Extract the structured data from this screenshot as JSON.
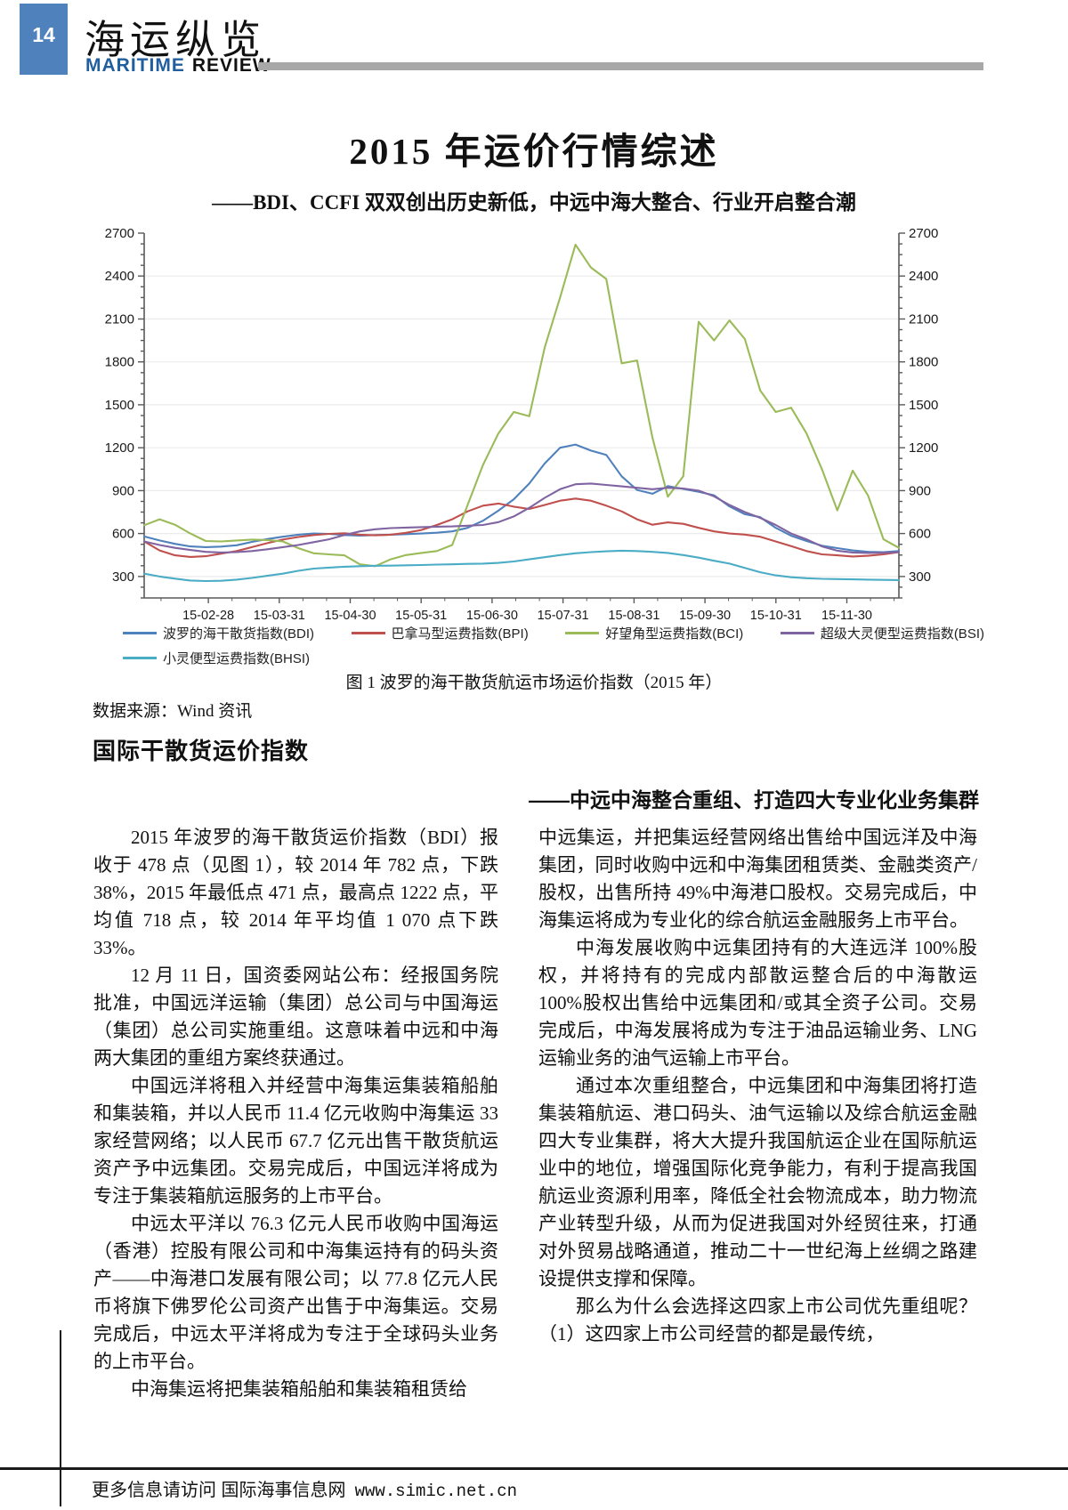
{
  "page": {
    "page_number": "14",
    "masthead_cn": "海运纵览",
    "masthead_en_blue": "MARITIME",
    "masthead_en_black": "REVIEW",
    "accent_blue": "#4f81bd",
    "masthead_blue": "#215e9e",
    "bar_gray": "#a8a8a8"
  },
  "article": {
    "title": "2015 年运价行情综述",
    "subtitle": "——BDI、CCFI 双双创出历史新低，中远中海大整合、行业开启整合潮",
    "figure_caption": "图 1 波罗的海干散货航运市场运价指数（2015 年）",
    "data_source": "数据来源：Wind 资讯",
    "section_heading": "国际干散货运价指数",
    "sub_heading": "——中远中海整合重组、打造四大专业化业务集群",
    "left_column": [
      "2015 年波罗的海干散货运价指数（BDI）报收于 478 点（见图 1），较 2014 年 782 点，下跌 38%，2015 年最低点 471 点，最高点 1222 点，平均值 718 点，较 2014 年平均值 1 070 点下跌 33%。",
      "12 月 11 日，国资委网站公布：经报国务院批准，中国远洋运输（集团）总公司与中国海运（集团）总公司实施重组。这意味着中远和中海两大集团的重组方案终获通过。",
      "中国远洋将租入并经营中海集运集装箱船舶和集装箱，并以人民币 11.4 亿元收购中海集运 33 家经营网络；以人民币 67.7 亿元出售干散货航运资产予中远集团。交易完成后，中国远洋将成为专注于集装箱航运服务的上市平台。",
      "中远太平洋以 76.3 亿元人民币收购中国海运（香港）控股有限公司和中海集运持有的码头资产——中海港口发展有限公司；以 77.8 亿元人民币将旗下佛罗伦公司资产出售于中海集运。交易完成后，中远太平洋将成为专注于全球码头业务的上市平台。",
      "中海集运将把集装箱船舶和集装箱租赁给"
    ],
    "right_column": [
      "中远集运，并把集运经营网络出售给中国远洋及中海集团，同时收购中远和中海集团租赁类、金融类资产/股权，出售所持 49%中海港口股权。交易完成后，中海集运将成为专业化的综合航运金融服务上市平台。",
      "中海发展收购中远集团持有的大连远洋 100%股权，并将持有的完成内部散运整合后的中海散运 100%股权出售给中远集团和/或其全资子公司。交易完成后，中海发展将成为专注于油品运输业务、LNG 运输业务的油气运输上市平台。",
      "通过本次重组整合，中远集团和中海集团将打造集装箱航运、港口码头、油气运输以及综合航运金融四大专业集群，将大大提升我国航运企业在国际航运业中的地位，增强国际化竞争能力，有利于提高我国航运业资源利用率，降低全社会物流成本，助力物流产业转型升级，从而为促进我国对外经贸往来，打通对外贸易战略通道，推动二十一世纪海上丝绸之路建设提供支撑和保障。",
      "那么为什么会选择这四家上市公司优先重组呢？（1）这四家上市公司经营的都是最传统，"
    ]
  },
  "footer": {
    "text_cn": "更多信息请访问  国际海事信息网",
    "url": "www.simic.net.cn"
  },
  "chart_data": {
    "type": "line",
    "title": "波罗的海干散货航运市场运价指数（2015 年）",
    "xlabel": "",
    "ylabel": "",
    "ylim": [
      150,
      2700
    ],
    "y_ticks": [
      300,
      600,
      900,
      1200,
      1500,
      1800,
      2100,
      2400,
      2700
    ],
    "grid": true,
    "legend_position": "bottom",
    "x_tick_labels": [
      "15-02-28",
      "15-03-31",
      "15-04-30",
      "15-05-31",
      "15-06-30",
      "15-07-31",
      "15-08-31",
      "15-09-30",
      "15-10-31",
      "15-11-30"
    ],
    "series": [
      {
        "name": "波罗的海干散货指数(BDI)",
        "color": "#4f81bd",
        "values": [
          580,
          552,
          528,
          510,
          505,
          509,
          518,
          542,
          562,
          578,
          592,
          600,
          598,
          590,
          586,
          590,
          592,
          596,
          600,
          606,
          615,
          640,
          690,
          760,
          840,
          950,
          1090,
          1200,
          1222,
          1180,
          1150,
          1000,
          905,
          878,
          932,
          912,
          892,
          868,
          790,
          735,
          715,
          640,
          585,
          548,
          515,
          498,
          482,
          472,
          470,
          478
        ]
      },
      {
        "name": "巴拿马型运费指数(BPI)",
        "color": "#c0504d",
        "values": [
          545,
          482,
          448,
          437,
          442,
          460,
          478,
          505,
          533,
          558,
          576,
          590,
          598,
          602,
          592,
          588,
          592,
          605,
          625,
          660,
          700,
          755,
          795,
          810,
          788,
          772,
          800,
          830,
          845,
          830,
          795,
          755,
          700,
          662,
          678,
          668,
          640,
          615,
          600,
          593,
          578,
          545,
          512,
          478,
          455,
          448,
          440,
          445,
          455,
          470
        ]
      },
      {
        "name": "好望角型运费指数(BCI)",
        "color": "#9bbb59",
        "values": [
          658,
          700,
          662,
          600,
          548,
          545,
          552,
          558,
          555,
          545,
          498,
          462,
          455,
          448,
          385,
          372,
          420,
          450,
          465,
          478,
          520,
          800,
          1080,
          1300,
          1450,
          1420,
          1900,
          2250,
          2620,
          2460,
          2380,
          1790,
          1810,
          1270,
          858,
          1000,
          2080,
          1950,
          2090,
          1960,
          1600,
          1450,
          1480,
          1300,
          1050,
          762,
          1040,
          865,
          560,
          500
        ]
      },
      {
        "name": "超级大灵便型运费指数(BSI)",
        "color": "#8064a2",
        "values": [
          545,
          520,
          500,
          485,
          472,
          468,
          470,
          478,
          490,
          505,
          520,
          540,
          560,
          590,
          615,
          630,
          638,
          642,
          645,
          648,
          650,
          655,
          660,
          680,
          720,
          780,
          850,
          910,
          945,
          950,
          940,
          930,
          920,
          910,
          920,
          915,
          900,
          860,
          800,
          750,
          710,
          660,
          600,
          560,
          510,
          480,
          468,
          465,
          466,
          470
        ]
      },
      {
        "name": "小灵便型运费指数(BHSI)",
        "color": "#4bacc6",
        "values": [
          320,
          300,
          285,
          272,
          268,
          270,
          278,
          290,
          305,
          320,
          340,
          355,
          362,
          368,
          372,
          375,
          376,
          378,
          380,
          383,
          385,
          388,
          390,
          395,
          405,
          420,
          435,
          450,
          462,
          470,
          476,
          480,
          478,
          472,
          465,
          450,
          432,
          410,
          390,
          360,
          330,
          308,
          295,
          288,
          284,
          282,
          280,
          278,
          276,
          275
        ]
      }
    ]
  }
}
